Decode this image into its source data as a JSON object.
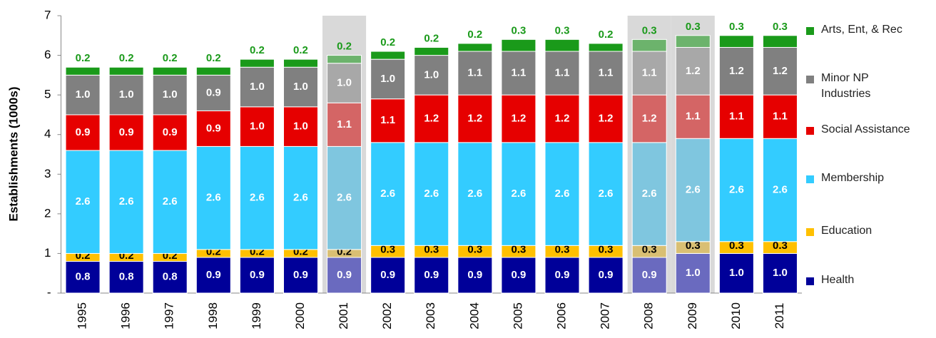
{
  "chart_data": {
    "type": "stacked_bar",
    "y_label": "Establishments (1000s)",
    "categories": [
      "1995",
      "1996",
      "1997",
      "1998",
      "1999",
      "2000",
      "2001",
      "2002",
      "2003",
      "2004",
      "2005",
      "2006",
      "2007",
      "2008",
      "2009",
      "2010",
      "2011"
    ],
    "ylim": [
      0,
      7
    ],
    "yticks": [
      {
        "value": 0,
        "label": "-"
      },
      1,
      2,
      3,
      4,
      5,
      6,
      7
    ],
    "highlighted": [
      6,
      13,
      14
    ],
    "series": [
      {
        "name": "Health",
        "color": "#000099",
        "highlight_color": "#6a6abf",
        "label_color": "#ffffff",
        "values": [
          0.8,
          0.8,
          0.8,
          0.9,
          0.9,
          0.9,
          0.9,
          0.9,
          0.9,
          0.9,
          0.9,
          0.9,
          0.9,
          0.9,
          1.0,
          1.0,
          1.0
        ],
        "value_labels": [
          "0.8",
          "0.8",
          "0.8",
          "0.9",
          "0.9",
          "0.9",
          "0.9",
          "0.9",
          "0.9",
          "0.9",
          "0.9",
          "0.9",
          "0.9",
          "0.9",
          "1.0",
          "1.0",
          "1.0"
        ]
      },
      {
        "name": "Education",
        "color": "#ffc000",
        "highlight_color": "#d9bf73",
        "label_color": "#000000",
        "values": [
          0.2,
          0.2,
          0.2,
          0.2,
          0.2,
          0.2,
          0.2,
          0.3,
          0.3,
          0.3,
          0.3,
          0.3,
          0.3,
          0.3,
          0.3,
          0.3,
          0.3
        ],
        "value_labels": [
          "0.2",
          "0.2",
          "0.2",
          "0.2",
          "0.2",
          "0.2",
          "0.2",
          "0.3",
          "0.3",
          "0.3",
          "0.3",
          "0.3",
          "0.3",
          "0.3",
          "0.3",
          "0.3",
          "0.3"
        ]
      },
      {
        "name": "Membership",
        "color": "#33ccff",
        "highlight_color": "#7fc6df",
        "label_color": "#ffffff",
        "values": [
          2.6,
          2.6,
          2.6,
          2.6,
          2.6,
          2.6,
          2.6,
          2.6,
          2.6,
          2.6,
          2.6,
          2.6,
          2.6,
          2.6,
          2.6,
          2.6,
          2.6
        ],
        "value_labels": [
          "2.6",
          "2.6",
          "2.6",
          "2.6",
          "2.6",
          "2.6",
          "2.6",
          "2.6",
          "2.6",
          "2.6",
          "2.6",
          "2.6",
          "2.6",
          "2.6",
          "2.6",
          "2.6",
          "2.6"
        ]
      },
      {
        "name": "Social Assistance",
        "color": "#e60000",
        "highlight_color": "#d46565",
        "label_color": "#ffffff",
        "values": [
          0.9,
          0.9,
          0.9,
          0.9,
          1.0,
          1.0,
          1.1,
          1.1,
          1.2,
          1.2,
          1.2,
          1.2,
          1.2,
          1.2,
          1.1,
          1.1,
          1.1
        ],
        "value_labels": [
          "0.9",
          "0.9",
          "0.9",
          "0.9",
          "1.0",
          "1.0",
          "1.1",
          "1.1",
          "1.2",
          "1.2",
          "1.2",
          "1.2",
          "1.2",
          "1.2",
          "1.1",
          "1.1",
          "1.1"
        ]
      },
      {
        "name": "Minor NP Industries",
        "color": "#808080",
        "highlight_color": "#a8a8a8",
        "label_color": "#ffffff",
        "values": [
          1.0,
          1.0,
          1.0,
          0.9,
          1.0,
          1.0,
          1.0,
          1.0,
          1.0,
          1.1,
          1.1,
          1.1,
          1.1,
          1.1,
          1.2,
          1.2,
          1.2
        ],
        "value_labels": [
          "1.0",
          "1.0",
          "1.0",
          "0.9",
          "1.0",
          "1.0",
          "1.0",
          "1.0",
          "1.0",
          "1.1",
          "1.1",
          "1.1",
          "1.1",
          "1.1",
          "1.2",
          "1.2",
          "1.2"
        ]
      },
      {
        "name": "Arts, Ent, & Rec",
        "color": "#1a9a1a",
        "highlight_color": "#6cb36c",
        "label_color": "#1a9a1a",
        "values": [
          0.2,
          0.2,
          0.2,
          0.2,
          0.2,
          0.2,
          0.2,
          0.2,
          0.2,
          0.2,
          0.3,
          0.3,
          0.2,
          0.3,
          0.3,
          0.3,
          0.3
        ],
        "value_labels": [
          "0.2",
          "0.2",
          "0.2",
          "0.2",
          "0.2",
          "0.2",
          "0.2",
          "0.2",
          "0.2",
          "0.2",
          "0.3",
          "0.3",
          "0.2",
          "0.3",
          "0.3",
          "0.3",
          "0.3"
        ]
      }
    ]
  }
}
